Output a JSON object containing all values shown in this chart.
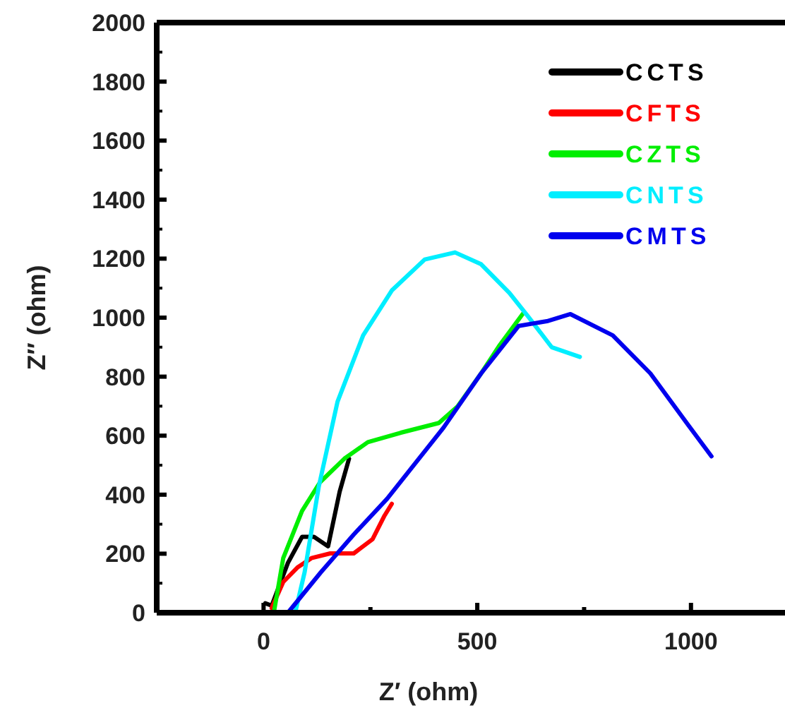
{
  "chart_data": {
    "type": "line",
    "xlabel": "Z′ (ohm)",
    "ylabel": "Z″ (ohm)",
    "xlim": [
      -250,
      1220
    ],
    "ylim": [
      0,
      2000
    ],
    "xticks": [
      {
        "value": -250,
        "label": null
      },
      0,
      {
        "value": 250,
        "label": null
      },
      500,
      {
        "value": 750,
        "label": null
      },
      1000
    ],
    "yticks": [
      0,
      200,
      400,
      600,
      800,
      1000,
      1200,
      1400,
      1600,
      1800,
      2000
    ],
    "grid": false,
    "legend": "top right",
    "marker": "none",
    "line_style": "solid",
    "series": [
      {
        "name": "CCTS",
        "color": "#000000",
        "x": [
          4,
          19,
          57,
          90,
          118,
          151,
          178,
          200
        ],
        "values": [
          32,
          24,
          169,
          257,
          257,
          225,
          410,
          522
        ]
      },
      {
        "name": "CFTS",
        "color": "#ff0000",
        "x": [
          19,
          46,
          79,
          112,
          156,
          211,
          255,
          283,
          300
        ],
        "values": [
          16,
          104,
          153,
          185,
          201,
          201,
          249,
          329,
          369
        ]
      },
      {
        "name": "CZTS",
        "color": "#00ee00",
        "x": [
          24,
          46,
          90,
          132,
          189,
          244,
          321,
          410,
          454,
          509,
          553,
          606
        ],
        "values": [
          0,
          185,
          345,
          442,
          522,
          578,
          610,
          643,
          699,
          811,
          908,
          1012
        ]
      },
      {
        "name": "CNTS",
        "color": "#00eeff",
        "x": [
          74,
          96,
          129,
          173,
          233,
          300,
          377,
          448,
          509,
          575,
          619,
          674,
          740
        ],
        "values": [
          0,
          137,
          426,
          715,
          940,
          1092,
          1197,
          1221,
          1181,
          1084,
          1004,
          900,
          867
        ]
      },
      {
        "name": "CMTS",
        "color": "#0000ee",
        "x": [
          57,
          134,
          211,
          289,
          421,
          509,
          597,
          663,
          718,
          817,
          905,
          994,
          1048
        ],
        "values": [
          0,
          137,
          265,
          386,
          627,
          811,
          972,
          988,
          1012,
          940,
          811,
          635,
          530
        ]
      }
    ]
  }
}
